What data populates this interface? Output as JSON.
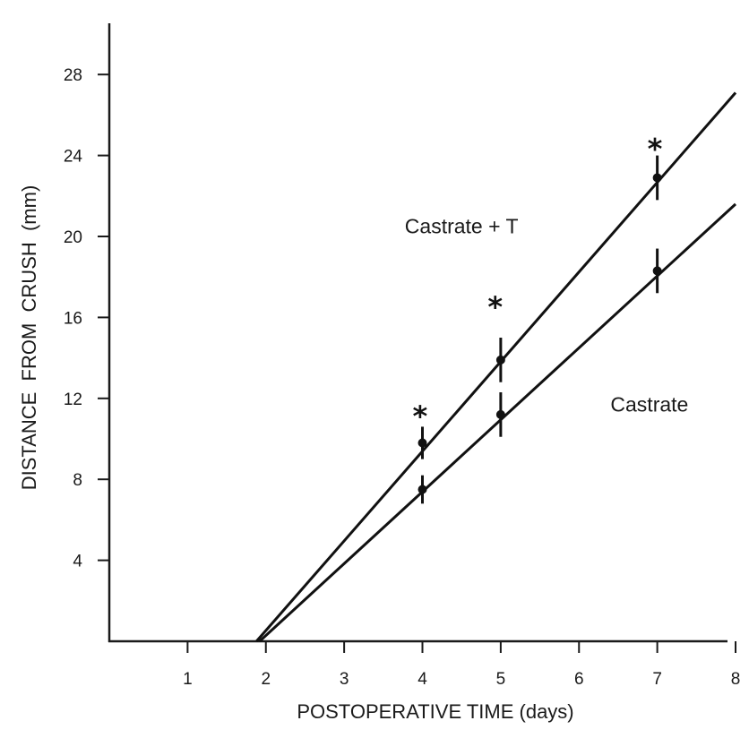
{
  "chart_data": {
    "type": "line",
    "title": "",
    "xlabel": "POSTOPERATIVE TIME (days)",
    "ylabel": "DISTANCE  FROM  CRUSH  (mm)",
    "xlim": [
      0,
      8
    ],
    "ylim": [
      0,
      30
    ],
    "xticks": [
      1,
      2,
      3,
      4,
      5,
      6,
      7,
      8
    ],
    "yticks": [
      4,
      8,
      12,
      16,
      20,
      24,
      28
    ],
    "grid": false,
    "series": [
      {
        "name": "Castrate + T",
        "x": [
          4,
          5,
          7
        ],
        "values": [
          9.8,
          13.9,
          22.9
        ],
        "error": [
          0.8,
          1.1,
          1.1
        ],
        "fit_line": {
          "x0": 1.88,
          "y0": 0,
          "x1": 8,
          "y1": 27.1
        }
      },
      {
        "name": "Castrate",
        "x": [
          4,
          5,
          7
        ],
        "values": [
          7.5,
          11.2,
          18.3
        ],
        "error": [
          0.7,
          1.1,
          1.1
        ],
        "fit_line": {
          "x0": 1.92,
          "y0": 0,
          "x1": 8,
          "y1": 21.6
        }
      }
    ],
    "annotations": [
      {
        "text": "*",
        "x": 3.97,
        "y": 11.6
      },
      {
        "text": "*",
        "x": 4.93,
        "y": 17.0
      },
      {
        "text": "*",
        "x": 6.97,
        "y": 24.8
      }
    ],
    "series_label_positions": [
      {
        "series": "Castrate + T",
        "x": 4.5,
        "y": 20.5
      },
      {
        "series": "Castrate",
        "x": 6.9,
        "y": 11.7
      }
    ]
  }
}
